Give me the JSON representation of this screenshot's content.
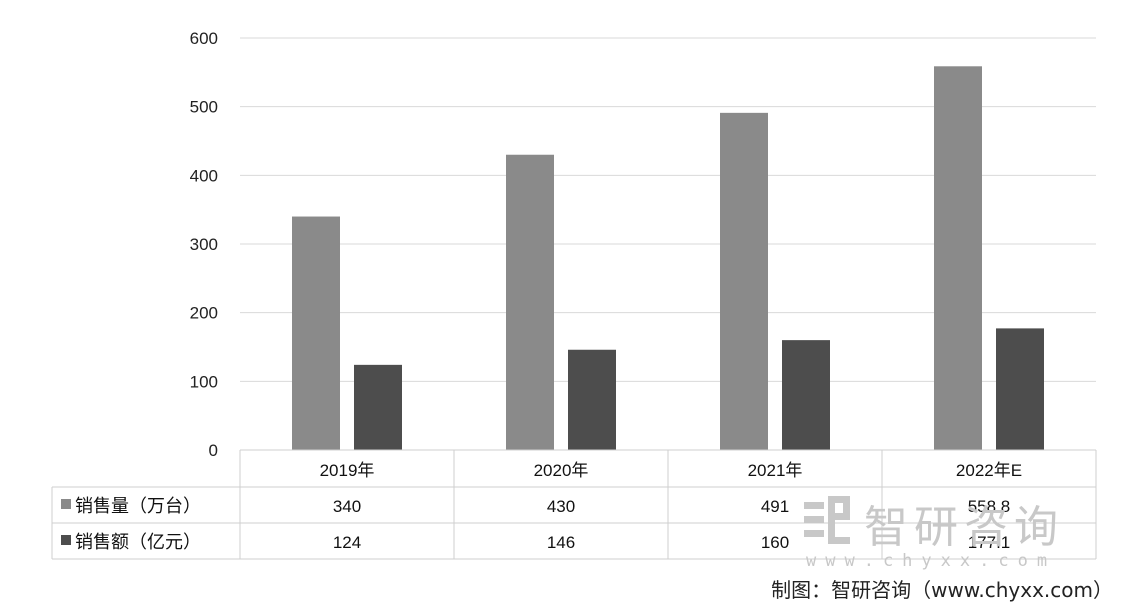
{
  "chart_data": {
    "type": "bar",
    "categories": [
      "2019年",
      "2020年",
      "2021年",
      "2022年E"
    ],
    "series": [
      {
        "name": "销售量（万台）",
        "values": [
          340,
          430,
          491,
          558.8
        ],
        "labels": [
          "340",
          "430",
          "491",
          "558.8"
        ],
        "color": "#8a8a8a"
      },
      {
        "name": "销售额（亿元）",
        "values": [
          124,
          146,
          160,
          177.1
        ],
        "labels": [
          "124",
          "146",
          "160",
          "177.1"
        ],
        "color": "#4d4d4d"
      }
    ],
    "ylim": [
      0,
      600
    ],
    "yticks": [
      0,
      100,
      200,
      300,
      400,
      500,
      600
    ],
    "grid": true,
    "legend": "data-table-left"
  },
  "watermark": {
    "brand": "智研咨询",
    "url": "www.chyxx.com"
  },
  "source": "制图：智研咨询（www.chyxx.com）"
}
